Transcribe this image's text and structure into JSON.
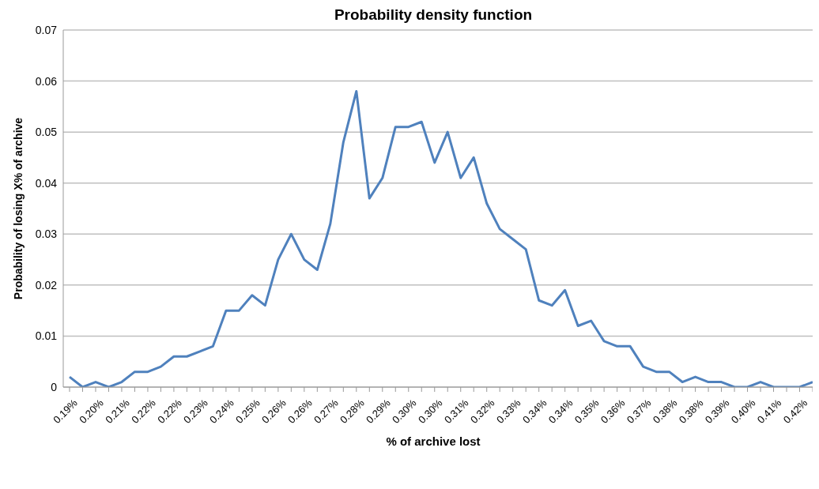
{
  "chart_data": {
    "type": "line",
    "title": "Probability density function",
    "xlabel": "% of archive lost",
    "ylabel": "Probability of losing X% of archive",
    "categories": [
      "0.19%",
      null,
      "0.20%",
      null,
      "0.21%",
      null,
      "0.22%",
      null,
      "0.22%",
      null,
      "0.23%",
      null,
      "0.24%",
      null,
      "0.25%",
      null,
      "0.26%",
      null,
      "0.26%",
      null,
      "0.27%",
      null,
      "0.28%",
      null,
      "0.29%",
      null,
      "0.30%",
      null,
      "0.30%",
      null,
      "0.31%",
      null,
      "0.32%",
      null,
      "0.33%",
      null,
      "0.34%",
      null,
      "0.34%",
      null,
      "0.35%",
      null,
      "0.36%",
      null,
      "0.37%",
      null,
      "0.38%",
      null,
      "0.38%",
      null,
      "0.39%",
      null,
      "0.40%",
      null,
      "0.41%",
      null,
      "0.42%",
      null
    ],
    "series": [
      {
        "color": "#4f81bd",
        "values": [
          0.002,
          0,
          0.001,
          0,
          0.001,
          0.003,
          0.003,
          0.004,
          0.006,
          0.006,
          0.007,
          0.008,
          0.015,
          0.015,
          0.018,
          0.016,
          0.025,
          0.03,
          0.025,
          0.023,
          0.032,
          0.048,
          0.058,
          0.037,
          0.041,
          0.051,
          0.051,
          0.052,
          0.044,
          0.05,
          0.041,
          0.045,
          0.036,
          0.031,
          0.029,
          0.027,
          0.017,
          0.016,
          0.019,
          0.012,
          0.013,
          0.009,
          0.008,
          0.008,
          0.004,
          0.003,
          0.003,
          0.001,
          0.002,
          0.001,
          0.001,
          0,
          0,
          0.001,
          0,
          0,
          0,
          0.001
        ]
      }
    ],
    "ylim": [
      0,
      0.07
    ],
    "yticks": [
      0,
      0.01,
      0.02,
      0.03,
      0.04,
      0.05,
      0.06,
      0.07
    ],
    "grid": "y",
    "legend": false,
    "marker": "none",
    "line_style": "solid"
  }
}
